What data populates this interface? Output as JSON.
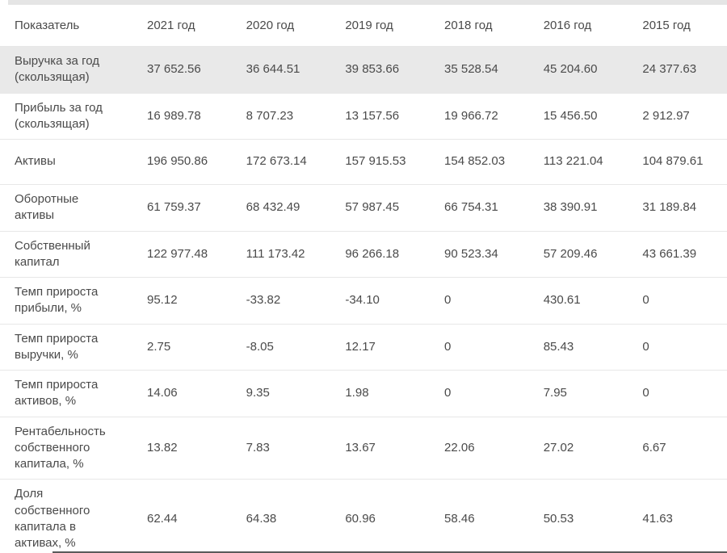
{
  "colors": {
    "text": "#4a4a4a",
    "highlight_row_bg": "#e9e9e9",
    "row_border": "#e7e7e7",
    "top_strip": "#e5e5e5",
    "bottom_divider": "#5a5a5a"
  },
  "chart_data": {
    "type": "table",
    "columns": [
      "Показатель",
      "2021 год",
      "2020 год",
      "2019 год",
      "2018 год",
      "2016 год",
      "2015 год"
    ],
    "rows": [
      {
        "label": "Выручка за год (скользящая)",
        "values": [
          "37 652.56",
          "36 644.51",
          "39 853.66",
          "35 528.54",
          "45 204.60",
          "24 377.63"
        ],
        "highlighted": true
      },
      {
        "label": "Прибыль за год (скользящая)",
        "values": [
          "16 989.78",
          "8 707.23",
          "13 157.56",
          "19 966.72",
          "15 456.50",
          "2 912.97"
        ],
        "highlighted": false
      },
      {
        "label": "Активы",
        "values": [
          "196 950.86",
          "172 673.14",
          "157 915.53",
          "154 852.03",
          "113 221.04",
          "104 879.61"
        ],
        "highlighted": false
      },
      {
        "label": "Оборотные активы",
        "values": [
          "61 759.37",
          "68 432.49",
          "57 987.45",
          "66 754.31",
          "38 390.91",
          "31 189.84"
        ],
        "highlighted": false
      },
      {
        "label": "Собственный капитал",
        "values": [
          "122 977.48",
          "111 173.42",
          "96 266.18",
          "90 523.34",
          "57 209.46",
          "43 661.39"
        ],
        "highlighted": false
      },
      {
        "label": "Темп прироста прибыли, %",
        "values": [
          "95.12",
          "-33.82",
          "-34.10",
          "0",
          "430.61",
          "0"
        ],
        "highlighted": false
      },
      {
        "label": "Темп прироста выручки, %",
        "values": [
          "2.75",
          "-8.05",
          "12.17",
          "0",
          "85.43",
          "0"
        ],
        "highlighted": false
      },
      {
        "label": "Темп прироста активов, %",
        "values": [
          "14.06",
          "9.35",
          "1.98",
          "0",
          "7.95",
          "0"
        ],
        "highlighted": false
      },
      {
        "label": "Рентабельность собственного капитала, %",
        "values": [
          "13.82",
          "7.83",
          "13.67",
          "22.06",
          "27.02",
          "6.67"
        ],
        "highlighted": false
      },
      {
        "label": "Доля собственного капитала в активах, %",
        "values": [
          "62.44",
          "64.38",
          "60.96",
          "58.46",
          "50.53",
          "41.63"
        ],
        "highlighted": false
      }
    ]
  }
}
